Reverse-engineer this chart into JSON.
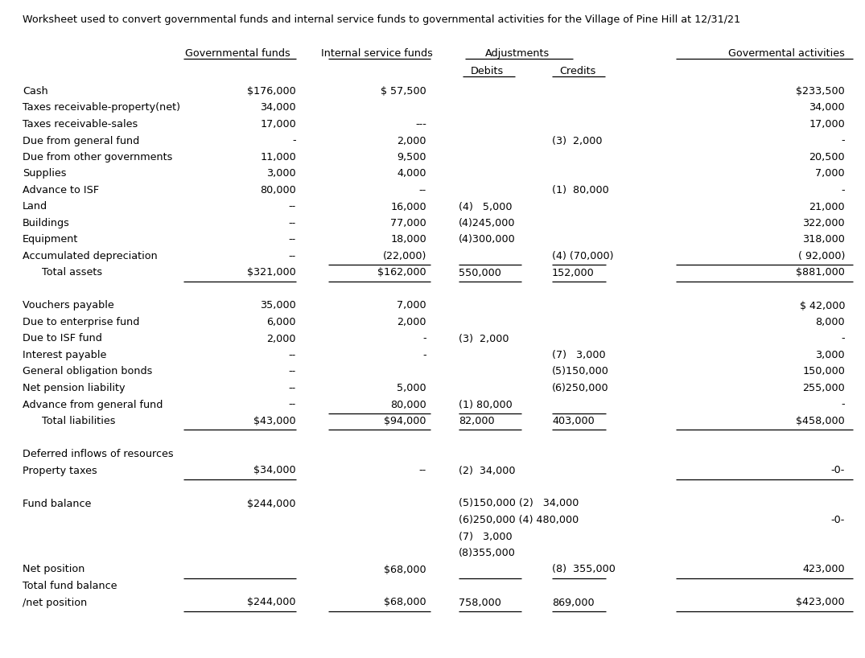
{
  "title": "Worksheet used to convert governmental funds and internal service funds to governmental activities for the Village of Pine Hill at 12/31/21",
  "bg_color": "#ffffff",
  "font_color": "#000000",
  "rows": [
    {
      "label": "Cash",
      "gov": "$176,000",
      "isf": "$ 57,500",
      "deb": "",
      "cred": "",
      "ga": "$233,500",
      "ul_gov": false,
      "ul_isf": false,
      "ul_deb": false,
      "ul_cred": false,
      "ul_ga": false,
      "indent": false,
      "bold": false
    },
    {
      "label": "Taxes receivable-property(net)",
      "gov": "34,000",
      "isf": "",
      "deb": "",
      "cred": "",
      "ga": "34,000",
      "ul_gov": false,
      "ul_isf": false,
      "ul_deb": false,
      "ul_cred": false,
      "ul_ga": false,
      "indent": false,
      "bold": false
    },
    {
      "label": "Taxes receivable-sales",
      "gov": "17,000",
      "isf": "---",
      "deb": "",
      "cred": "",
      "ga": "17,000",
      "ul_gov": false,
      "ul_isf": false,
      "ul_deb": false,
      "ul_cred": false,
      "ul_ga": false,
      "indent": false,
      "bold": false
    },
    {
      "label": "Due from general fund",
      "gov": "-",
      "isf": "2,000",
      "deb": "",
      "cred": "(3)  2,000",
      "ga": "-",
      "ul_gov": false,
      "ul_isf": false,
      "ul_deb": false,
      "ul_cred": false,
      "ul_ga": false,
      "indent": false,
      "bold": false
    },
    {
      "label": "Due from other governments",
      "gov": "11,000",
      "isf": "9,500",
      "deb": "",
      "cred": "",
      "ga": "20,500",
      "ul_gov": false,
      "ul_isf": false,
      "ul_deb": false,
      "ul_cred": false,
      "ul_ga": false,
      "indent": false,
      "bold": false
    },
    {
      "label": "Supplies",
      "gov": "3,000",
      "isf": "4,000",
      "deb": "",
      "cred": "",
      "ga": "7,000",
      "ul_gov": false,
      "ul_isf": false,
      "ul_deb": false,
      "ul_cred": false,
      "ul_ga": false,
      "indent": false,
      "bold": false
    },
    {
      "label": "Advance to ISF",
      "gov": "80,000",
      "isf": "--",
      "deb": "",
      "cred": "(1)  80,000",
      "ga": "-",
      "ul_gov": false,
      "ul_isf": false,
      "ul_deb": false,
      "ul_cred": false,
      "ul_ga": false,
      "indent": false,
      "bold": false
    },
    {
      "label": "Land",
      "gov": "--",
      "isf": "16,000",
      "deb": "(4)   5,000",
      "cred": "",
      "ga": "21,000",
      "ul_gov": false,
      "ul_isf": false,
      "ul_deb": false,
      "ul_cred": false,
      "ul_ga": false,
      "indent": false,
      "bold": false
    },
    {
      "label": "Buildings",
      "gov": "--",
      "isf": "77,000",
      "deb": "(4)245,000",
      "cred": "",
      "ga": "322,000",
      "ul_gov": false,
      "ul_isf": false,
      "ul_deb": false,
      "ul_cred": false,
      "ul_ga": false,
      "indent": false,
      "bold": false
    },
    {
      "label": "Equipment",
      "gov": "--",
      "isf": "18,000",
      "deb": "(4)300,000",
      "cred": "",
      "ga": "318,000",
      "ul_gov": false,
      "ul_isf": false,
      "ul_deb": false,
      "ul_cred": false,
      "ul_ga": false,
      "indent": false,
      "bold": false
    },
    {
      "label": "Accumulated depreciation",
      "gov": "--",
      "isf": "(22,000)",
      "deb": "",
      "cred": "(4) (70,000)",
      "ga": "( 92,000)",
      "ul_gov": false,
      "ul_isf": true,
      "ul_deb": true,
      "ul_cred": true,
      "ul_ga": true,
      "indent": false,
      "bold": false
    },
    {
      "label": "      Total assets",
      "gov": "$321,000",
      "isf": "$162,000",
      "deb": "550,000",
      "cred": "152,000",
      "ga": "$881,000",
      "ul_gov": true,
      "ul_isf": true,
      "ul_deb": true,
      "ul_cred": true,
      "ul_ga": true,
      "indent": true,
      "bold": false
    },
    {
      "label": "",
      "gov": "",
      "isf": "",
      "deb": "",
      "cred": "",
      "ga": "",
      "ul_gov": false,
      "ul_isf": false,
      "ul_deb": false,
      "ul_cred": false,
      "ul_ga": false,
      "indent": false,
      "bold": false
    },
    {
      "label": "Vouchers payable",
      "gov": "35,000",
      "isf": "7,000",
      "deb": "",
      "cred": "",
      "ga": "$ 42,000",
      "ul_gov": false,
      "ul_isf": false,
      "ul_deb": false,
      "ul_cred": false,
      "ul_ga": false,
      "indent": false,
      "bold": false
    },
    {
      "label": "Due to enterprise fund",
      "gov": "6,000",
      "isf": "2,000",
      "deb": "",
      "cred": "",
      "ga": "8,000",
      "ul_gov": false,
      "ul_isf": false,
      "ul_deb": false,
      "ul_cred": false,
      "ul_ga": false,
      "indent": false,
      "bold": false
    },
    {
      "label": "Due to ISF fund",
      "gov": "2,000",
      "isf": "-",
      "deb": "(3)  2,000",
      "cred": "",
      "ga": "-",
      "ul_gov": false,
      "ul_isf": false,
      "ul_deb": false,
      "ul_cred": false,
      "ul_ga": false,
      "indent": false,
      "bold": false
    },
    {
      "label": "Interest payable",
      "gov": "--",
      "isf": "-",
      "deb": "",
      "cred": "(7)   3,000",
      "ga": "3,000",
      "ul_gov": false,
      "ul_isf": false,
      "ul_deb": false,
      "ul_cred": false,
      "ul_ga": false,
      "indent": false,
      "bold": false
    },
    {
      "label": "General obligation bonds",
      "gov": "--",
      "isf": "",
      "deb": "",
      "cred": "(5)150,000",
      "ga": "150,000",
      "ul_gov": false,
      "ul_isf": false,
      "ul_deb": false,
      "ul_cred": false,
      "ul_ga": false,
      "indent": false,
      "bold": false
    },
    {
      "label": "Net pension liability",
      "gov": "--",
      "isf": "5,000",
      "deb": "",
      "cred": "(6)250,000",
      "ga": "255,000",
      "ul_gov": false,
      "ul_isf": false,
      "ul_deb": false,
      "ul_cred": false,
      "ul_ga": false,
      "indent": false,
      "bold": false
    },
    {
      "label": "Advance from general fund",
      "gov": "--",
      "isf": "80,000",
      "deb": "(1) 80,000",
      "cred": "",
      "ga": "-",
      "ul_gov": false,
      "ul_isf": true,
      "ul_deb": true,
      "ul_cred": true,
      "ul_ga": false,
      "indent": false,
      "bold": false
    },
    {
      "label": "      Total liabilities",
      "gov": "$43,000",
      "isf": "$94,000",
      "deb": "82,000",
      "cred": "403,000",
      "ga": "$458,000",
      "ul_gov": true,
      "ul_isf": true,
      "ul_deb": true,
      "ul_cred": true,
      "ul_ga": true,
      "indent": true,
      "bold": false
    },
    {
      "label": "",
      "gov": "",
      "isf": "",
      "deb": "",
      "cred": "",
      "ga": "",
      "ul_gov": false,
      "ul_isf": false,
      "ul_deb": false,
      "ul_cred": false,
      "ul_ga": false,
      "indent": false,
      "bold": false
    },
    {
      "label": "Deferred inflows of resources",
      "gov": "",
      "isf": "",
      "deb": "",
      "cred": "",
      "ga": "",
      "ul_gov": false,
      "ul_isf": false,
      "ul_deb": false,
      "ul_cred": false,
      "ul_ga": false,
      "indent": false,
      "bold": false
    },
    {
      "label": "Property taxes",
      "gov": "$34,000",
      "isf": "--",
      "deb": "(2)  34,000",
      "cred": "",
      "ga": "-0-",
      "ul_gov": true,
      "ul_isf": false,
      "ul_deb": false,
      "ul_cred": false,
      "ul_ga": true,
      "indent": false,
      "bold": false
    },
    {
      "label": "",
      "gov": "",
      "isf": "",
      "deb": "",
      "cred": "",
      "ga": "",
      "ul_gov": false,
      "ul_isf": false,
      "ul_deb": false,
      "ul_cred": false,
      "ul_ga": false,
      "indent": false,
      "bold": false
    },
    {
      "label": "Fund balance",
      "gov": "$244,000",
      "isf": "",
      "deb": "(5)150,000 (2)   34,000",
      "cred": "",
      "ga": "",
      "ul_gov": false,
      "ul_isf": false,
      "ul_deb": false,
      "ul_cred": false,
      "ul_ga": false,
      "indent": false,
      "bold": false
    },
    {
      "label": "",
      "gov": "",
      "isf": "",
      "deb": "(6)250,000 (4) 480,000",
      "cred": "",
      "ga": "-0-",
      "ul_gov": false,
      "ul_isf": false,
      "ul_deb": false,
      "ul_cred": false,
      "ul_ga": false,
      "indent": false,
      "bold": false
    },
    {
      "label": "",
      "gov": "",
      "isf": "",
      "deb": "(7)   3,000",
      "cred": "",
      "ga": "",
      "ul_gov": false,
      "ul_isf": false,
      "ul_deb": false,
      "ul_cred": false,
      "ul_ga": false,
      "indent": false,
      "bold": false
    },
    {
      "label": "",
      "gov": "",
      "isf": "",
      "deb": "(8)355,000",
      "cred": "",
      "ga": "",
      "ul_gov": false,
      "ul_isf": false,
      "ul_deb": false,
      "ul_cred": false,
      "ul_ga": false,
      "indent": false,
      "bold": false
    },
    {
      "label": "Net position",
      "gov": "",
      "isf": "$68,000",
      "deb": "",
      "cred": "(8)  355,000",
      "ga": "423,000",
      "ul_gov": true,
      "ul_isf": false,
      "ul_deb": true,
      "ul_cred": true,
      "ul_ga": true,
      "indent": false,
      "bold": false
    },
    {
      "label": "Total fund balance",
      "gov": "",
      "isf": "",
      "deb": "",
      "cred": "",
      "ga": "",
      "ul_gov": false,
      "ul_isf": false,
      "ul_deb": false,
      "ul_cred": false,
      "ul_ga": false,
      "indent": false,
      "bold": false
    },
    {
      "label": "/net position",
      "gov": "$244,000",
      "isf": "$68,000",
      "deb": "758,000",
      "cred": "869,000",
      "ga": "$423,000",
      "ul_gov": true,
      "ul_isf": true,
      "ul_deb": true,
      "ul_cred": true,
      "ul_ga": true,
      "indent": false,
      "bold": false
    }
  ]
}
